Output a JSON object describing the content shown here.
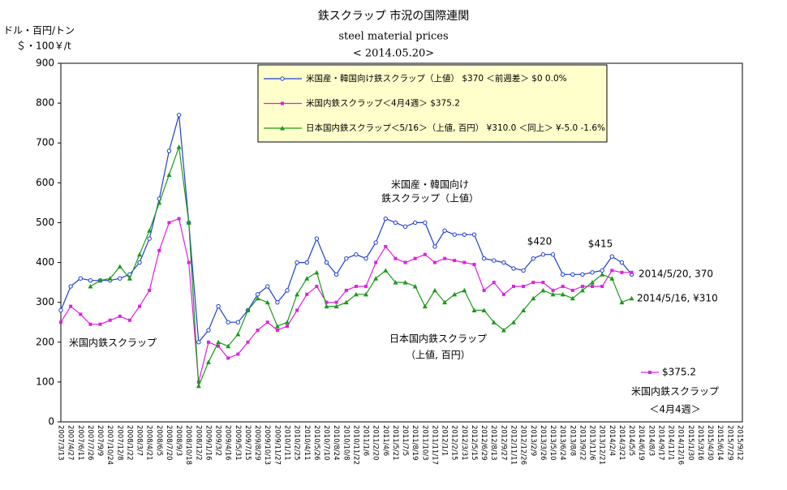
{
  "chart_data": {
    "type": "line",
    "title": "鉄スクラップ 市況の国際連関",
    "subtitle": "steel material prices",
    "date_label": "< 2014.05.20>",
    "y_axis_label": [
      "ドル・百円/トン",
      "＄・100￥/t"
    ],
    "ylim": [
      0,
      900
    ],
    "yticks": [
      0,
      100,
      200,
      300,
      400,
      500,
      600,
      700,
      800,
      900
    ],
    "grid": false,
    "legend": "top",
    "categories": [
      "2007/3/13",
      "2007/4/27",
      "2007/6/11",
      "2007/7/26",
      "2007/9/9",
      "2007/10/24",
      "2007/12/8",
      "2008/1/22",
      "2008/3/7",
      "2008/4/21",
      "2008/6/5",
      "2008/7/20",
      "2008/9/3",
      "2008/10/18",
      "2008/12/2",
      "2009/1/16",
      "2009/3/2",
      "2009/4/16",
      "2009/5/31",
      "2009/7/15",
      "2009/8/29",
      "2009/10/13",
      "2009/11/27",
      "2010/1/11",
      "2010/2/25",
      "2010/4/11",
      "2010/5/26",
      "2010/7/10",
      "2010/8/24",
      "2010/10/8",
      "2010/11/22",
      "2011/1/6",
      "2011/2/20",
      "2011/4/6",
      "2011/5/21",
      "2011/7/5",
      "2011/8/19",
      "2011/10/3",
      "2011/11/17",
      "2012/1/1",
      "2012/2/15",
      "2012/3/31",
      "2012/5/15",
      "2012/6/29",
      "2012/8/13",
      "2012/9/27",
      "2012/11/11",
      "2012/12/26",
      "2013/2/9",
      "2013/3/26",
      "2013/5/10",
      "2013/6/24",
      "2013/8/8",
      "2013/9/22",
      "2013/11/6",
      "2013/12/21",
      "2014/2/4",
      "2014/3/21",
      "2014/5/5",
      "2014/6/19",
      "2014/8/3",
      "2014/9/17",
      "2014/11/1",
      "2014/12/16",
      "2015/1/30",
      "2015/3/16",
      "2015/4/30",
      "2015/6/14",
      "2015/7/29",
      "2015/9/12"
    ],
    "series": [
      {
        "name": "米国産・韓国向け鉄スクラップ（上値） $370 ＜前週差＞ $0 0.0%",
        "color": "#1f3fd0",
        "marker": "circle",
        "values": [
          280,
          340,
          360,
          355,
          355,
          355,
          360,
          370,
          400,
          460,
          560,
          680,
          770,
          500,
          200,
          230,
          290,
          250,
          250,
          280,
          320,
          340,
          300,
          330,
          400,
          400,
          460,
          400,
          370,
          410,
          420,
          410,
          450,
          510,
          500,
          490,
          500,
          500,
          440,
          480,
          470,
          470,
          470,
          410,
          405,
          400,
          385,
          380,
          410,
          420,
          420,
          370,
          370,
          370,
          375,
          380,
          415,
          400,
          370,
          null,
          null,
          null,
          null,
          null,
          null,
          null,
          null,
          null,
          null,
          null
        ]
      },
      {
        "name": "米国内鉄スクラップ＜4月4週＞ $375.2",
        "color": "#e020e0",
        "marker": "square",
        "values": [
          250,
          290,
          270,
          245,
          245,
          255,
          265,
          255,
          290,
          330,
          430,
          500,
          510,
          400,
          100,
          200,
          190,
          160,
          170,
          200,
          230,
          250,
          230,
          240,
          280,
          320,
          340,
          300,
          300,
          330,
          340,
          340,
          400,
          440,
          410,
          400,
          410,
          420,
          400,
          410,
          405,
          400,
          395,
          330,
          350,
          320,
          340,
          340,
          350,
          350,
          330,
          340,
          330,
          340,
          340,
          340,
          380,
          375,
          375,
          null,
          null,
          null,
          null,
          null,
          null,
          null,
          null,
          null,
          null,
          null
        ]
      },
      {
        "name": "日本国内鉄スクラップ＜5/16＞（上値, 百円） ¥310.0 ＜同上＞ ¥-5.0 -1.6%",
        "color": "#1a9a1a",
        "marker": "triangle",
        "values": [
          null,
          null,
          null,
          340,
          355,
          360,
          390,
          360,
          420,
          480,
          550,
          620,
          690,
          500,
          90,
          150,
          200,
          190,
          220,
          280,
          310,
          300,
          240,
          250,
          320,
          360,
          375,
          290,
          290,
          300,
          320,
          320,
          360,
          380,
          350,
          350,
          340,
          290,
          330,
          300,
          320,
          330,
          280,
          280,
          250,
          230,
          250,
          280,
          310,
          330,
          320,
          320,
          310,
          330,
          350,
          370,
          360,
          300,
          310,
          null,
          null,
          null,
          null,
          null,
          null,
          null,
          null,
          null,
          null,
          null
        ]
      }
    ],
    "annotations": [
      "米国産・韓国向け",
      "鉄スクラップ（上値）",
      "$420",
      "$415",
      "2014/5/20, 370",
      "2014/5/16, ¥310",
      "米国内鉄スクラップ",
      "日本国内鉄スクラップ",
      "（上値, 百円）"
    ],
    "small_legend": {
      "label": "$375.2",
      "lines": [
        "米国内鉄スクラップ",
        "＜4月4週＞"
      ]
    }
  }
}
